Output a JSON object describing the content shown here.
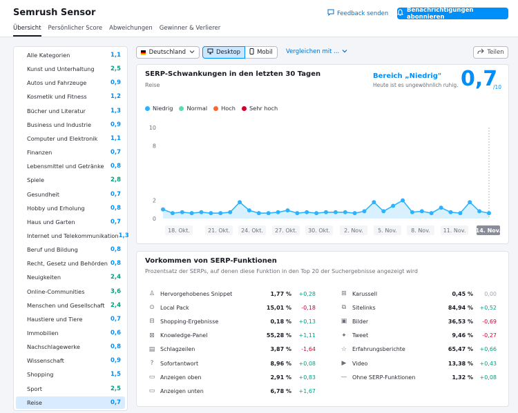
{
  "header": {
    "title": "Semrush Sensor",
    "tabs": [
      "Übersicht",
      "Persönlicher Score",
      "Abweichungen",
      "Gewinner & Verlierer"
    ],
    "feedback_label": "Feedback senden",
    "notify_label": "Benachrichtigungen abonnieren"
  },
  "sidebar": {
    "items": [
      {
        "label": "Alle Kategorien",
        "value": "1,1",
        "color": "#008ff8"
      },
      {
        "label": "Kunst und Unterhaltung",
        "value": "2,5",
        "color": "#009f81"
      },
      {
        "label": "Autos und Fahrzeuge",
        "value": "0,9",
        "color": "#008ff8"
      },
      {
        "label": "Kosmetik und Fitness",
        "value": "1,2",
        "color": "#008ff8"
      },
      {
        "label": "Bücher und Literatur",
        "value": "1,3",
        "color": "#008ff8"
      },
      {
        "label": "Business und Industrie",
        "value": "0,9",
        "color": "#008ff8"
      },
      {
        "label": "Computer und Elektronik",
        "value": "1,1",
        "color": "#008ff8"
      },
      {
        "label": "Finanzen",
        "value": "0,7",
        "color": "#008ff8"
      },
      {
        "label": "Lebensmittel und Getränke",
        "value": "0,8",
        "color": "#008ff8"
      },
      {
        "label": "Spiele",
        "value": "2,8",
        "color": "#009f81"
      },
      {
        "label": "Gesundheit",
        "value": "0,7",
        "color": "#008ff8"
      },
      {
        "label": "Hobby und Erholung",
        "value": "0,8",
        "color": "#008ff8"
      },
      {
        "label": "Haus und Garten",
        "value": "0,7",
        "color": "#008ff8"
      },
      {
        "label": "Internet und Telekommunikation",
        "value": "1,3",
        "color": "#008ff8"
      },
      {
        "label": "Beruf und Bildung",
        "value": "0,8",
        "color": "#008ff8"
      },
      {
        "label": "Recht, Gesetz und Behörden",
        "value": "0,8",
        "color": "#008ff8"
      },
      {
        "label": "Neuigkeiten",
        "value": "2,4",
        "color": "#009f81"
      },
      {
        "label": "Online-Communities",
        "value": "3,6",
        "color": "#009f81"
      },
      {
        "label": "Menschen und Gesellschaft",
        "value": "2,4",
        "color": "#009f81"
      },
      {
        "label": "Haustiere und Tiere",
        "value": "0,7",
        "color": "#008ff8"
      },
      {
        "label": "Immobilien",
        "value": "0,6",
        "color": "#008ff8"
      },
      {
        "label": "Nachschlagewerke",
        "value": "0,8",
        "color": "#008ff8"
      },
      {
        "label": "Wissenschaft",
        "value": "0,9",
        "color": "#008ff8"
      },
      {
        "label": "Shopping",
        "value": "1,5",
        "color": "#008ff8"
      },
      {
        "label": "Sport",
        "value": "2,5",
        "color": "#009f81"
      },
      {
        "label": "Reise",
        "value": "0,7",
        "color": "#008ff8"
      }
    ],
    "active_index": 25
  },
  "controls": {
    "country": "Deutschland",
    "device_desktop": "Desktop",
    "device_mobile": "Mobil",
    "compare_label": "Vergleichen mit ...",
    "share_label": "Teilen"
  },
  "serp_card": {
    "title": "SERP-Schwankungen in den letzten 30 Tagen",
    "subtitle": "Reise",
    "range_title": "Bereich „Niedrig\"",
    "range_sub": "Heute ist es ungewöhnlich ruhig.",
    "score": "0,7",
    "score_den": "/10",
    "legend": [
      {
        "label": "Niedrig",
        "color": "#2bb3ff"
      },
      {
        "label": "Normal",
        "color": "#59ddaa"
      },
      {
        "label": "Hoch",
        "color": "#ff642d"
      },
      {
        "label": "Sehr hoch",
        "color": "#d1002f"
      }
    ]
  },
  "chart_data": {
    "type": "area",
    "y_ticks": [
      "10",
      "8",
      "2",
      "0"
    ],
    "x_labels": [
      "18. Okt.",
      "21. Okt.",
      "24. Okt.",
      "27. Okt.",
      "30. Okt.",
      "2. Nov.",
      "5. Nov.",
      "8. Nov.",
      "11. Nov.",
      "14. Nov."
    ],
    "highlighted_label": "14. Nov.",
    "values": [
      1.0,
      0.6,
      0.7,
      0.6,
      0.7,
      0.6,
      0.6,
      0.7,
      1.8,
      0.9,
      0.6,
      0.6,
      0.7,
      0.9,
      0.6,
      0.7,
      0.6,
      0.7,
      0.7,
      0.7,
      0.6,
      0.8,
      1.8,
      0.8,
      1.4,
      2.0,
      0.7,
      0.8,
      0.6,
      1.2,
      0.7,
      0.6,
      1.8,
      0.8,
      0.6
    ],
    "ylim": [
      0,
      10
    ],
    "series_color": "#2bb3ff"
  },
  "features_card": {
    "title": "Vorkommen von SERP-Funktionen",
    "subtitle": "Prozentsatz der SERPs, auf denen diese Funktion in den Top 20 der Suchergebnisse angezeigt wird",
    "left": [
      {
        "icon": "snippet-icon",
        "glyph": "♙",
        "name": "Hervorgehobenes Snippet",
        "pct": "1,77 %",
        "chg": "+0,28",
        "dir": "up"
      },
      {
        "icon": "local-pack-icon",
        "glyph": "⊙",
        "name": "Local Pack",
        "pct": "15,01 %",
        "chg": "-0,18",
        "dir": "down"
      },
      {
        "icon": "shopping-icon",
        "glyph": "⊟",
        "name": "Shopping-Ergebnisse",
        "pct": "0,18 %",
        "chg": "+0,13",
        "dir": "up"
      },
      {
        "icon": "knowledge-panel-icon",
        "glyph": "⊠",
        "name": "Knowledge-Panel",
        "pct": "55,28 %",
        "chg": "+1,11",
        "dir": "up"
      },
      {
        "icon": "headlines-icon",
        "glyph": "▤",
        "name": "Schlagzeilen",
        "pct": "3,87 %",
        "chg": "-1,64",
        "dir": "down"
      },
      {
        "icon": "instant-answer-icon",
        "glyph": "?",
        "name": "Sofortantwort",
        "pct": "8,96 %",
        "chg": "+0,08",
        "dir": "up"
      },
      {
        "icon": "ads-top-icon",
        "glyph": "▭",
        "name": "Anzeigen oben",
        "pct": "2,91 %",
        "chg": "+0,83",
        "dir": "up"
      },
      {
        "icon": "ads-bottom-icon",
        "glyph": "▭",
        "name": "Anzeigen unten",
        "pct": "6,78 %",
        "chg": "+1,67",
        "dir": "up"
      }
    ],
    "right": [
      {
        "icon": "carousel-icon",
        "glyph": "⊞",
        "name": "Karussell",
        "pct": "0,45 %",
        "chg": "0,00",
        "dir": "none"
      },
      {
        "icon": "sitelinks-icon",
        "glyph": "⧉",
        "name": "Sitelinks",
        "pct": "84,94 %",
        "chg": "+0,52",
        "dir": "up"
      },
      {
        "icon": "images-icon",
        "glyph": "▣",
        "name": "Bilder",
        "pct": "36,53 %",
        "chg": "-0,69",
        "dir": "down"
      },
      {
        "icon": "tweet-icon",
        "glyph": "✦",
        "name": "Tweet",
        "pct": "9,46 %",
        "chg": "-0,27",
        "dir": "down"
      },
      {
        "icon": "reviews-icon",
        "glyph": "☆",
        "name": "Erfahrungsberichte",
        "pct": "65,47 %",
        "chg": "+0,66",
        "dir": "up"
      },
      {
        "icon": "video-icon",
        "glyph": "▶",
        "name": "Video",
        "pct": "13,38 %",
        "chg": "+0,43",
        "dir": "up"
      },
      {
        "icon": "no-serp-icon",
        "glyph": "—",
        "name": "Ohne SERP-Funktionen",
        "pct": "1,32 %",
        "chg": "+0,08",
        "dir": "up"
      }
    ],
    "colors": {
      "up": "#009f81",
      "down": "#d1002f",
      "none": "#a0a3ab"
    }
  }
}
